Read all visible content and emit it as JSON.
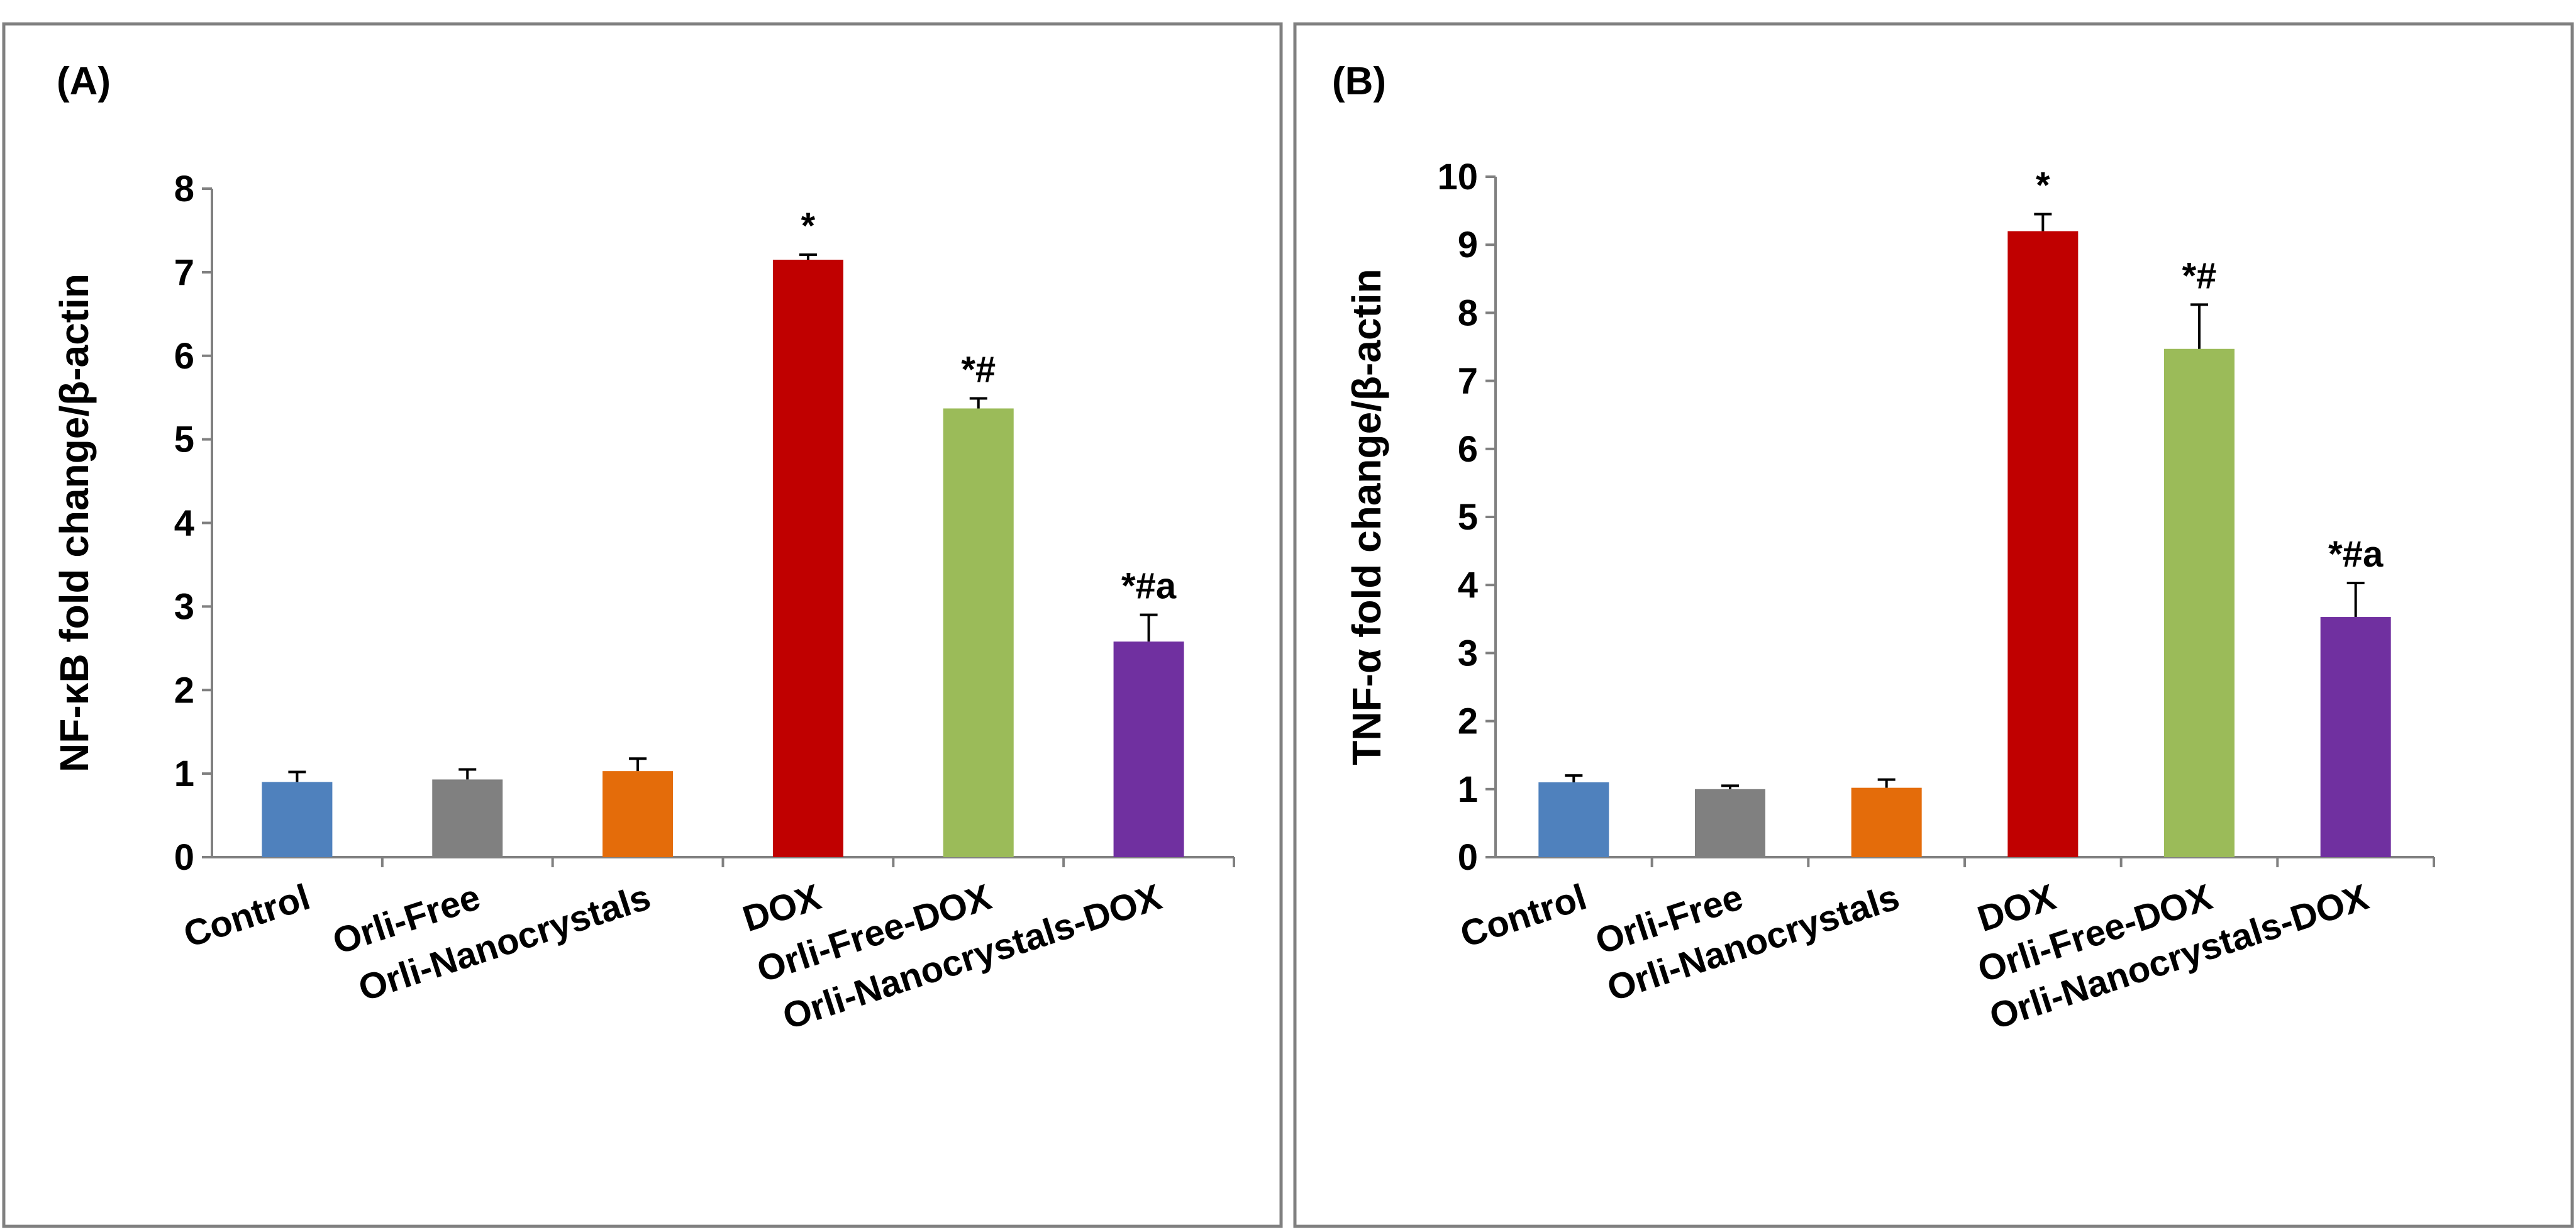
{
  "figure": {
    "type": "two-panel bar chart"
  },
  "chart_data": [
    {
      "type": "bar",
      "panel": "(A)",
      "title": "",
      "xlabel": "",
      "ylabel": "NF-κB fold change/β-actin",
      "ylim": [
        0,
        8
      ],
      "yticks": [
        0,
        1,
        2,
        3,
        4,
        5,
        6,
        7,
        8
      ],
      "grid": false,
      "categories": [
        "Control",
        "Orli-Free",
        "Orli-Nanocrystals",
        "DOX",
        "Orli-Free-DOX",
        "Orli-Nanocrystals-DOX"
      ],
      "values": [
        0.9,
        0.93,
        1.03,
        7.15,
        5.37,
        2.58
      ],
      "errors": [
        0.12,
        0.12,
        0.15,
        0.06,
        0.12,
        0.32
      ],
      "colors": [
        "#4f81bd",
        "#808080",
        "#e46c0a",
        "#c00000",
        "#9bbb59",
        "#7030a0"
      ],
      "annotations": [
        "",
        "",
        "",
        "*",
        "*#",
        "*#a"
      ]
    },
    {
      "type": "bar",
      "panel": "(B)",
      "title": "",
      "xlabel": "",
      "ylabel": "TNF-α fold change/β-actin",
      "ylim": [
        0,
        10
      ],
      "yticks": [
        0,
        1,
        2,
        3,
        4,
        5,
        6,
        7,
        8,
        9,
        10
      ],
      "grid": false,
      "categories": [
        "Control",
        "Orli-Free",
        "Orli-Nanocrystals",
        "DOX",
        "Orli-Free-DOX",
        "Orli-Nanocrystals-DOX"
      ],
      "values": [
        1.1,
        1.0,
        1.02,
        9.2,
        7.47,
        3.53
      ],
      "errors": [
        0.1,
        0.05,
        0.12,
        0.25,
        0.65,
        0.5
      ],
      "colors": [
        "#4f81bd",
        "#808080",
        "#e46c0a",
        "#c00000",
        "#9bbb59",
        "#7030a0"
      ],
      "annotations": [
        "",
        "",
        "",
        "*",
        "*#",
        "*#a"
      ]
    }
  ]
}
